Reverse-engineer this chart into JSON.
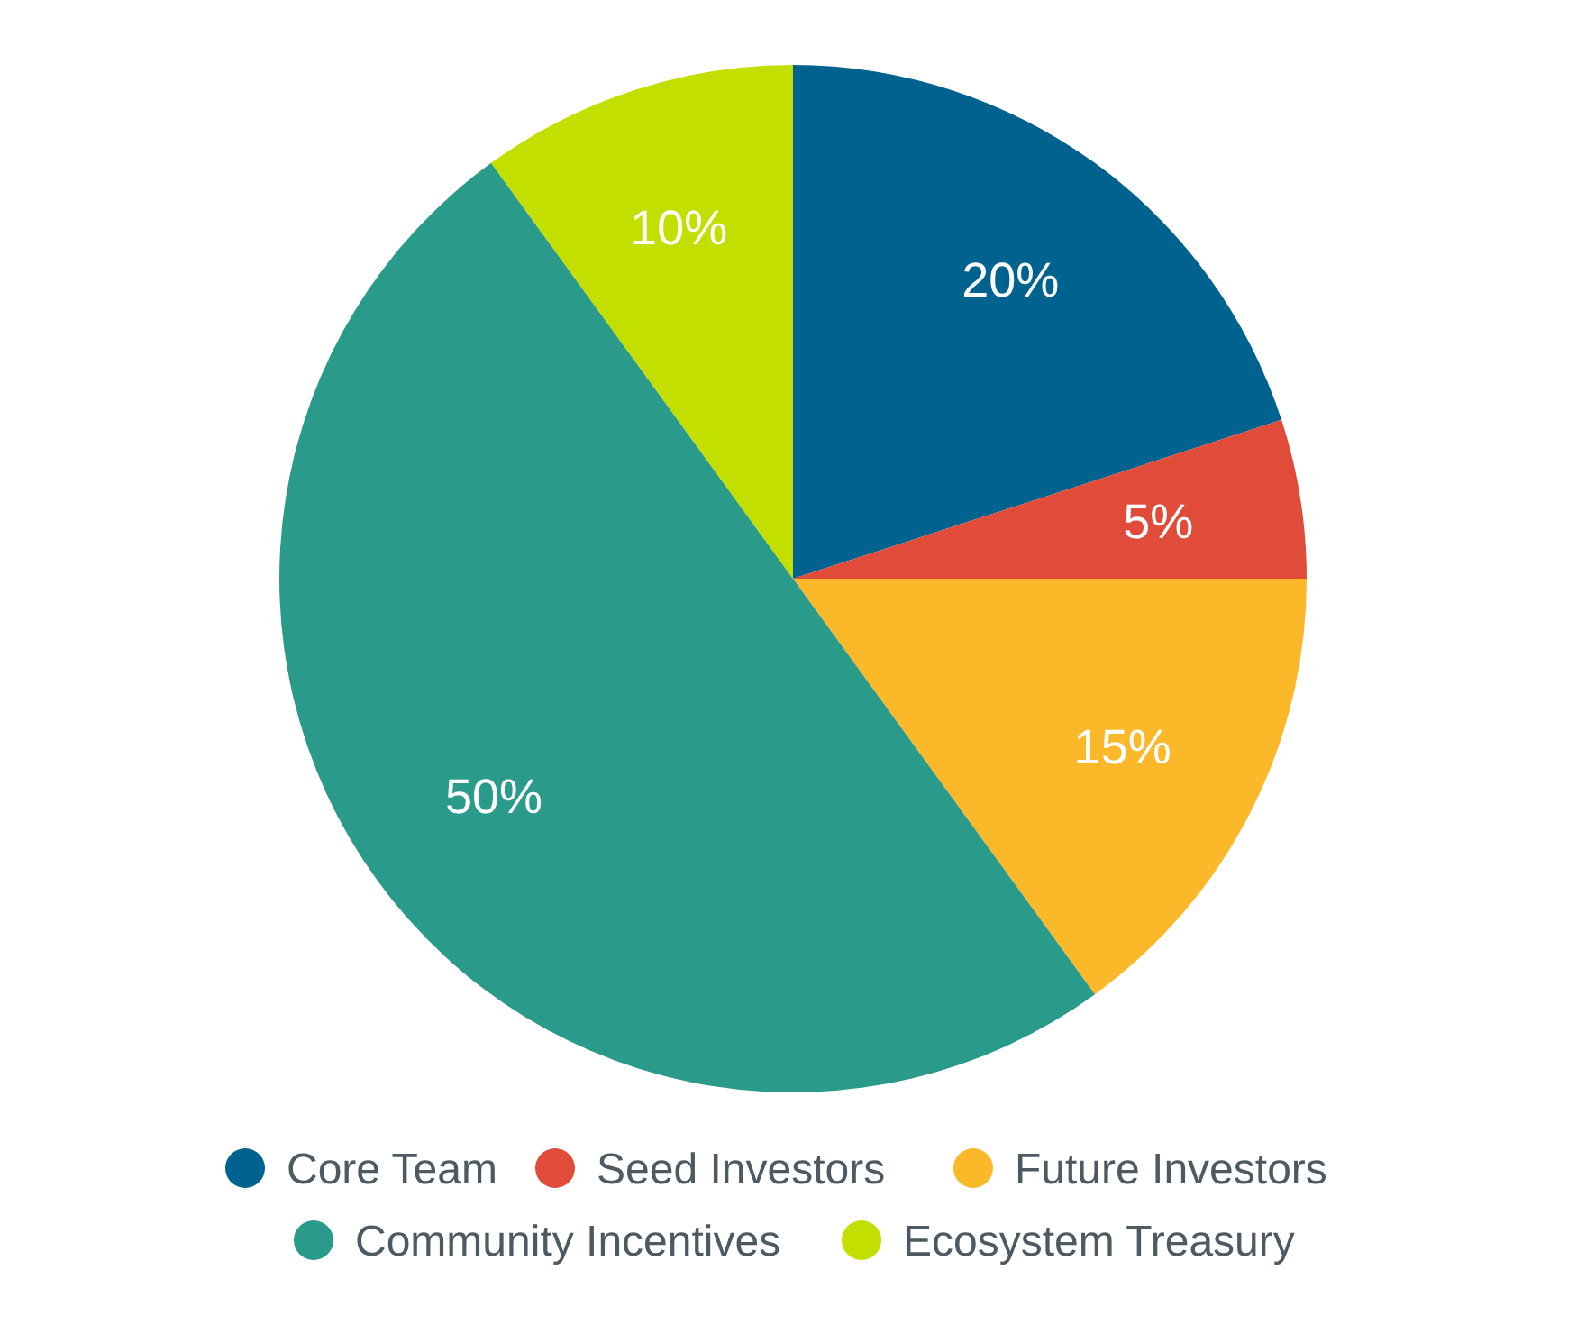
{
  "chart_data": {
    "type": "pie",
    "categories": [
      "Core Team",
      "Seed Investors",
      "Future Investors",
      "Community Incentives",
      "Ecosystem Treasury"
    ],
    "values": [
      20,
      5,
      15,
      50,
      10
    ],
    "colors": [
      "#00628f",
      "#e04b3a",
      "#fbb829",
      "#2a9a8a",
      "#c3df00"
    ],
    "value_labels": [
      "20%",
      "5%",
      "15%",
      "50%",
      "10%"
    ],
    "legend": "bottom"
  }
}
